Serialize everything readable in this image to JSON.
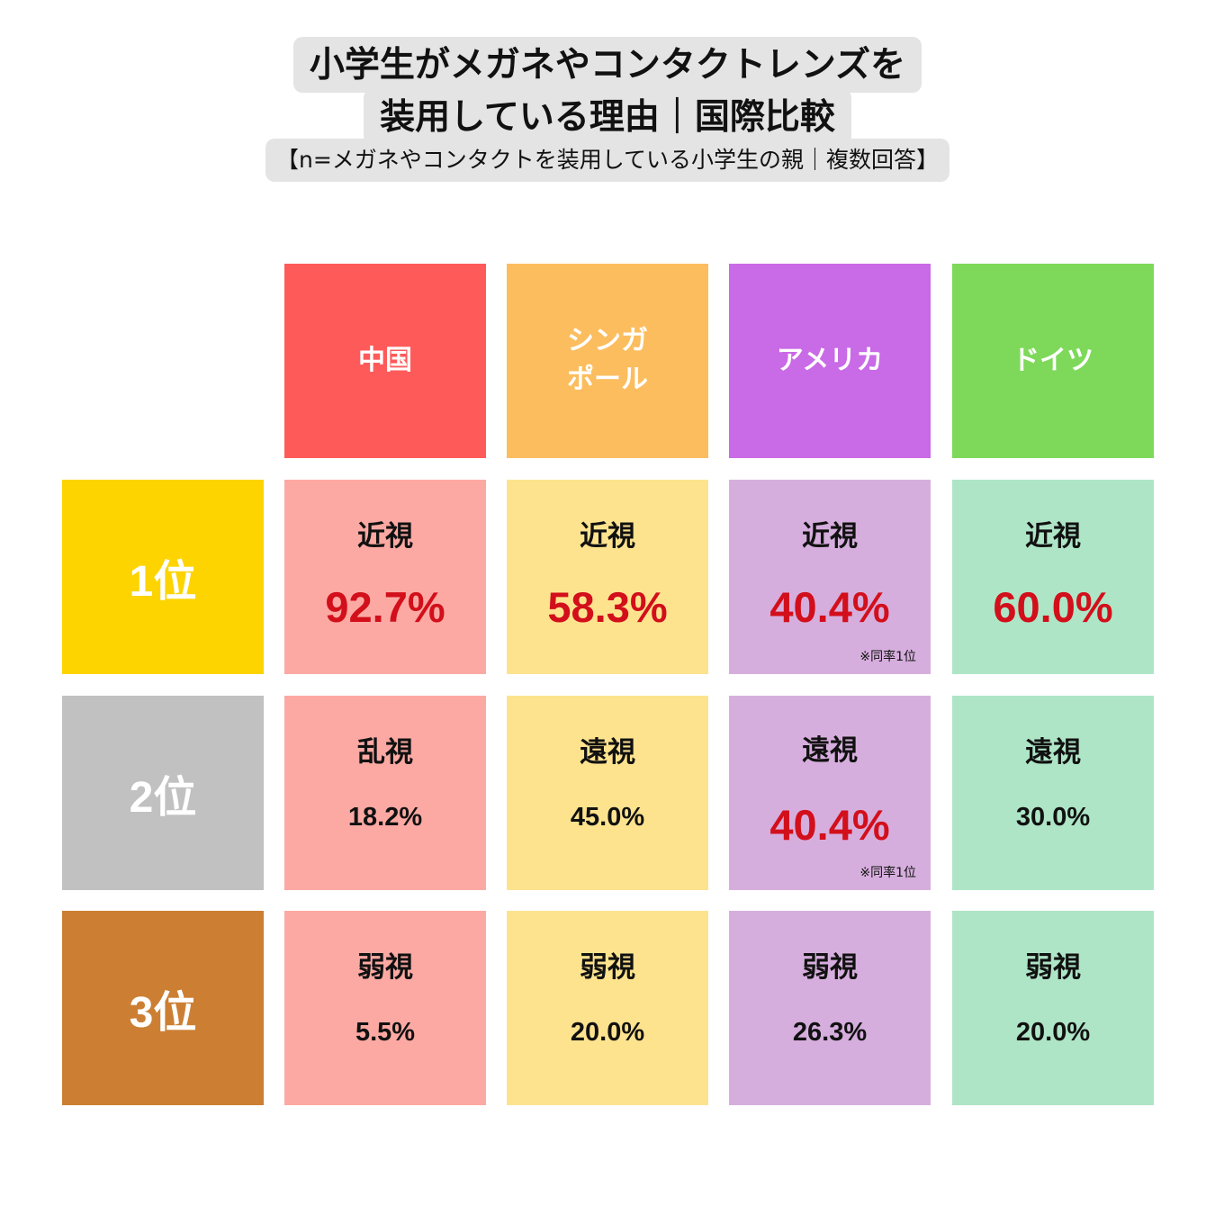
{
  "title": {
    "line1": "小学生がメガネやコンタクトレンズを",
    "line2": "装用している理由｜国際比較",
    "subtitle": "【n=メガネやコンタクトを装用している小学生の親｜複数回答】"
  },
  "colors": {
    "header": {
      "china": "#ff5a5a",
      "singapore": "#fcbd5e",
      "america": "#c96ae6",
      "germany": "#7ed95a"
    },
    "body": {
      "china": "#fca9a3",
      "singapore": "#fde38e",
      "america": "#d6aedd",
      "germany": "#aee5c6"
    },
    "rank": {
      "first": "#fdd400",
      "second": "#c1c1c1",
      "third": "#cc7f33"
    },
    "highlight_text": "#d20f1b"
  },
  "countries": [
    {
      "id": "china",
      "line1": "中国",
      "line2": ""
    },
    {
      "id": "singapore",
      "line1": "シンガ",
      "line2": "ポール"
    },
    {
      "id": "america",
      "line1": "アメリカ",
      "line2": ""
    },
    {
      "id": "germany",
      "line1": "ドイツ",
      "line2": ""
    }
  ],
  "ranks": [
    "1位",
    "2位",
    "3位"
  ],
  "tie_note": "※同率1位",
  "chart_data": {
    "type": "table",
    "title": "小学生がメガネやコンタクトレンズを装用している理由｜国際比較",
    "columns": [
      "中国",
      "シンガポール",
      "アメリカ",
      "ドイツ"
    ],
    "rows": [
      {
        "rank": "1位",
        "cells": [
          {
            "reason": "近視",
            "value": 92.7,
            "label": "92.7%"
          },
          {
            "reason": "近視",
            "value": 58.3,
            "label": "58.3%"
          },
          {
            "reason": "近視",
            "value": 40.4,
            "label": "40.4%",
            "note": "※同率1位"
          },
          {
            "reason": "近視",
            "value": 60.0,
            "label": "60.0%"
          }
        ]
      },
      {
        "rank": "2位",
        "cells": [
          {
            "reason": "乱視",
            "value": 18.2,
            "label": "18.2%"
          },
          {
            "reason": "遠視",
            "value": 45.0,
            "label": "45.0%"
          },
          {
            "reason": "遠視",
            "value": 40.4,
            "label": "40.4%",
            "note": "※同率1位"
          },
          {
            "reason": "遠視",
            "value": 30.0,
            "label": "30.0%"
          }
        ]
      },
      {
        "rank": "3位",
        "cells": [
          {
            "reason": "弱視",
            "value": 5.5,
            "label": "5.5%"
          },
          {
            "reason": "弱視",
            "value": 20.0,
            "label": "20.0%"
          },
          {
            "reason": "弱視",
            "value": 26.3,
            "label": "26.3%"
          },
          {
            "reason": "弱視",
            "value": 20.0,
            "label": "20.0%"
          }
        ]
      }
    ]
  }
}
